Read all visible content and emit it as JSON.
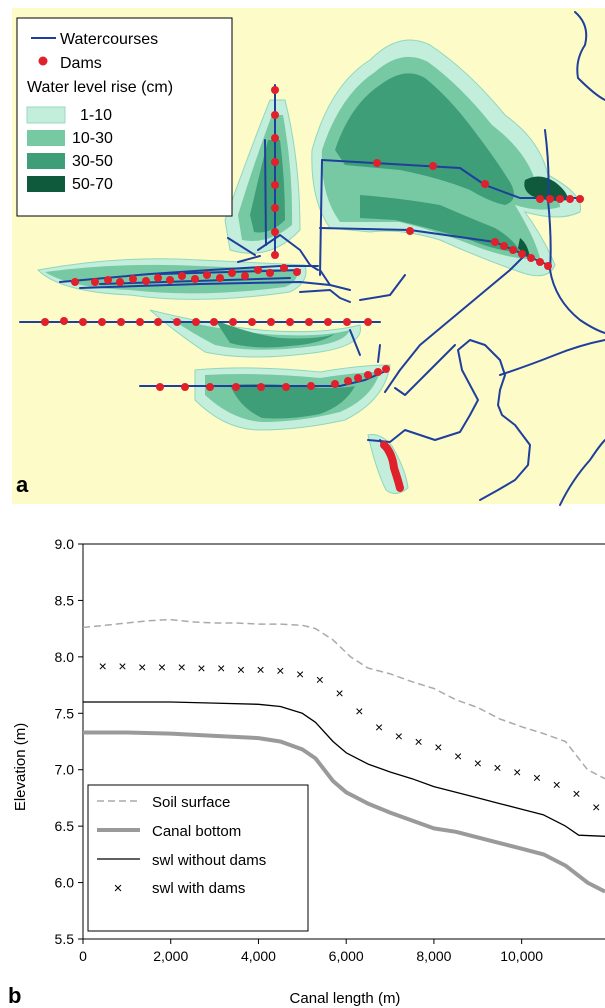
{
  "panel_a": {
    "label": "a",
    "legend": {
      "watercourses": "Watercourses",
      "dams": "Dams",
      "title": "Water level rise (cm)",
      "classes": [
        {
          "label": "1-10",
          "color": "#c3eedb"
        },
        {
          "label": "10-30",
          "color": "#77c9a4"
        },
        {
          "label": "30-50",
          "color": "#3e9e78"
        },
        {
          "label": "50-70",
          "color": "#0f5a3c"
        }
      ]
    },
    "colors": {
      "background": "#fdfbc8",
      "watercourse": "#1f3f9c",
      "dam": "#e0202a"
    }
  },
  "panel_b": {
    "label": "b",
    "chart_data": {
      "type": "line",
      "xlabel": "Canal length (m)",
      "ylabel": "Elevation (m)",
      "xlim": [
        0,
        11900
      ],
      "ylim": [
        5.5,
        9.0
      ],
      "xticks": [
        "0",
        "2,000",
        "4,000",
        "6,000",
        "8,000",
        "10,000"
      ],
      "yticks": [
        "5.5",
        "6.0",
        "6.5",
        "7.0",
        "7.5",
        "8.0",
        "8.5",
        "9.0"
      ],
      "legend_position": "bottom-left",
      "series": [
        {
          "name": "Soil surface",
          "style": "dashed",
          "color": "#aaaaaa",
          "x": [
            0,
            500,
            1000,
            1500,
            2000,
            2500,
            3000,
            3500,
            4000,
            4500,
            5000,
            5300,
            5700,
            6100,
            6500,
            7000,
            7500,
            8000,
            8500,
            9000,
            9500,
            10000,
            10500,
            11000,
            11500,
            11900
          ],
          "y": [
            8.26,
            8.28,
            8.3,
            8.32,
            8.33,
            8.31,
            8.3,
            8.3,
            8.29,
            8.29,
            8.28,
            8.25,
            8.15,
            8.0,
            7.9,
            7.85,
            7.78,
            7.72,
            7.62,
            7.55,
            7.45,
            7.38,
            7.32,
            7.25,
            7.0,
            6.92
          ]
        },
        {
          "name": "Canal bottom",
          "style": "thick",
          "color": "#9a9a9a",
          "x": [
            0,
            1000,
            2000,
            3000,
            4000,
            4500,
            5000,
            5300,
            5700,
            6000,
            6500,
            7000,
            7500,
            8000,
            8500,
            9000,
            9500,
            10000,
            10500,
            11000,
            11500,
            11900
          ],
          "y": [
            7.33,
            7.33,
            7.32,
            7.3,
            7.28,
            7.25,
            7.18,
            7.1,
            6.9,
            6.8,
            6.7,
            6.62,
            6.55,
            6.48,
            6.45,
            6.4,
            6.35,
            6.3,
            6.25,
            6.15,
            6.0,
            5.92
          ]
        },
        {
          "name": "swl without dams",
          "style": "solid",
          "color": "#000000",
          "x": [
            0,
            1000,
            2000,
            3000,
            4000,
            4500,
            5000,
            5300,
            5700,
            6000,
            6500,
            7000,
            7500,
            8000,
            8500,
            9000,
            9500,
            10000,
            10500,
            11000,
            11300,
            11900
          ],
          "y": [
            7.6,
            7.6,
            7.6,
            7.59,
            7.58,
            7.56,
            7.5,
            7.42,
            7.25,
            7.15,
            7.05,
            6.98,
            6.92,
            6.85,
            6.8,
            6.75,
            6.7,
            6.65,
            6.6,
            6.5,
            6.42,
            6.41
          ]
        },
        {
          "name": "swl with dams",
          "style": "markers-x",
          "color": "#000000",
          "x": [
            450,
            900,
            1350,
            1800,
            2250,
            2700,
            3150,
            3600,
            4050,
            4500,
            4950,
            5400,
            5850,
            6300,
            6750,
            7200,
            7650,
            8100,
            8550,
            9000,
            9450,
            9900,
            10350,
            10800,
            11250,
            11700
          ],
          "y": [
            7.92,
            7.92,
            7.91,
            7.91,
            7.91,
            7.9,
            7.9,
            7.89,
            7.89,
            7.88,
            7.85,
            7.8,
            7.68,
            7.52,
            7.38,
            7.3,
            7.25,
            7.2,
            7.12,
            7.06,
            7.02,
            6.98,
            6.93,
            6.87,
            6.79,
            6.67
          ]
        }
      ]
    }
  }
}
